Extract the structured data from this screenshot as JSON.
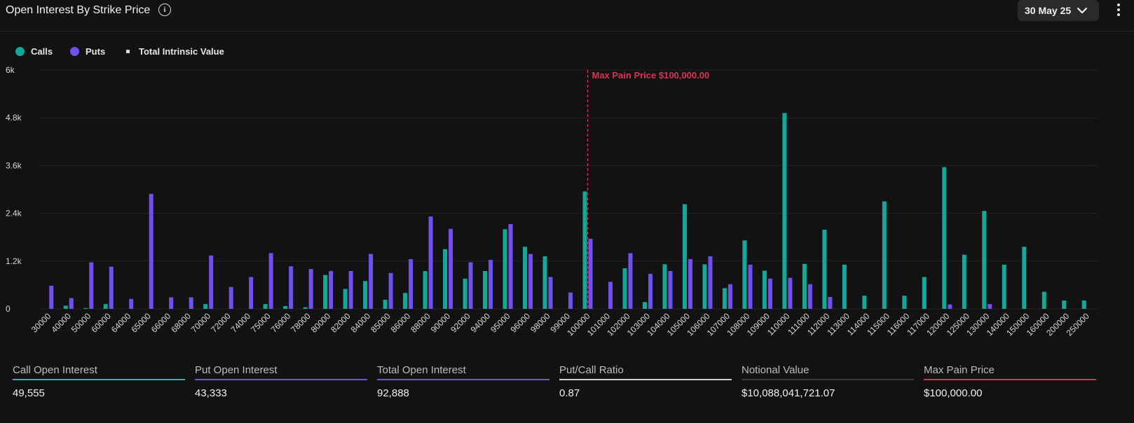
{
  "header": {
    "title": "Open Interest By Strike Price",
    "date_selected": "30 May 25"
  },
  "legend": [
    {
      "label": "Calls",
      "color": "#14a89a",
      "icon": "circle"
    },
    {
      "label": "Puts",
      "color": "#7250f0",
      "icon": "circle"
    },
    {
      "label": "Total Intrinsic Value",
      "color": "#d8d8d8",
      "icon": "square"
    }
  ],
  "colors": {
    "calls": "#14a89a",
    "puts": "#7250f0",
    "max_pain": "#e0324f"
  },
  "chart_data": {
    "type": "bar",
    "title": "Open Interest By Strike Price",
    "yticks": [
      "0",
      "1.2k",
      "2.4k",
      "3.6k",
      "4.8k",
      "6k"
    ],
    "ylim": [
      0,
      6000
    ],
    "grid": true,
    "legend_position": "top-left",
    "categories": [
      "30000",
      "40000",
      "50000",
      "60000",
      "64000",
      "65000",
      "66000",
      "68000",
      "70000",
      "72000",
      "74000",
      "75000",
      "76000",
      "78000",
      "80000",
      "82000",
      "84000",
      "85000",
      "86000",
      "88000",
      "90000",
      "92000",
      "94000",
      "95000",
      "96000",
      "98000",
      "99000",
      "100000",
      "101000",
      "102000",
      "103000",
      "104000",
      "105000",
      "106000",
      "107000",
      "108000",
      "109000",
      "110000",
      "111000",
      "112000",
      "113000",
      "114000",
      "115000",
      "116000",
      "117000",
      "120000",
      "125000",
      "130000",
      "140000",
      "150000",
      "160000",
      "200000",
      "250000"
    ],
    "series": [
      {
        "name": "Calls",
        "values": [
          0,
          80,
          20,
          120,
          0,
          0,
          0,
          0,
          120,
          0,
          0,
          120,
          70,
          40,
          850,
          500,
          700,
          230,
          400,
          950,
          1500,
          760,
          950,
          2000,
          1560,
          1320,
          0,
          2950,
          0,
          1020,
          170,
          1120,
          2630,
          1120,
          520,
          1720,
          960,
          4920,
          1130,
          1990,
          1110,
          330,
          2700,
          330,
          800,
          3560,
          1360,
          2460,
          1110,
          1560,
          430,
          210,
          210
        ]
      },
      {
        "name": "Puts",
        "values": [
          580,
          270,
          1170,
          1060,
          250,
          2890,
          290,
          290,
          1340,
          550,
          800,
          1400,
          1070,
          1000,
          950,
          950,
          1380,
          900,
          1250,
          2320,
          2010,
          1170,
          1230,
          2130,
          1380,
          800,
          410,
          1760,
          680,
          1400,
          880,
          950,
          1250,
          1320,
          620,
          1110,
          760,
          780,
          620,
          300,
          0,
          0,
          0,
          0,
          0,
          110,
          0,
          120,
          0,
          0,
          0,
          0,
          0
        ]
      }
    ],
    "annotations": [
      {
        "label": "Max Pain Price $100,000.00",
        "x": "100000"
      }
    ]
  },
  "stats": [
    {
      "label": "Call Open Interest",
      "value": "49,555",
      "color": "#14c3b0"
    },
    {
      "label": "Put Open Interest",
      "value": "43,333",
      "color": "#7250f0"
    },
    {
      "label": "Total Open Interest",
      "value": "92,888",
      "color": "#7250f0"
    },
    {
      "label": "Put/Call Ratio",
      "value": "0.87",
      "color": "#cfcfcf"
    },
    {
      "label": "Notional Value",
      "value": "$10,088,041,721.07",
      "color": "#3a3a3a"
    },
    {
      "label": "Max Pain Price",
      "value": "$100,000.00",
      "color": "#e0324f"
    }
  ]
}
